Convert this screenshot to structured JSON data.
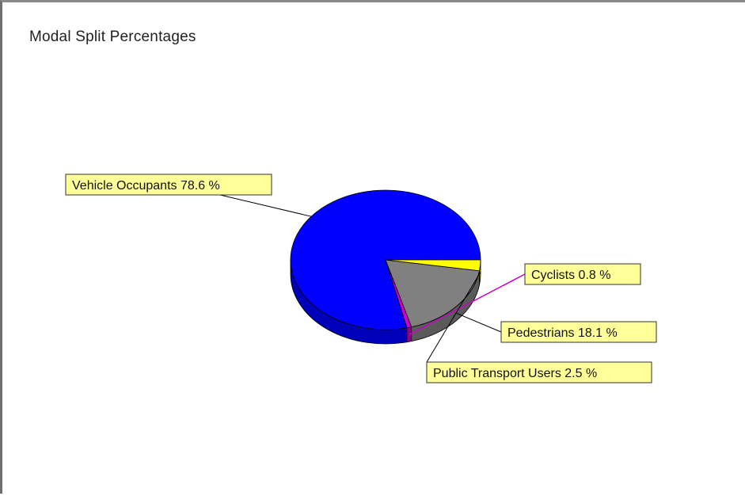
{
  "chart_data": {
    "type": "pie",
    "title": "Modal Split Percentages",
    "legend": "none",
    "slices": [
      {
        "label": "Vehicle Occupants",
        "value": 78.6,
        "display": "Vehicle Occupants 78.6 %",
        "color": "#0000ff",
        "side_color": "#0000b8"
      },
      {
        "label": "Cyclists",
        "value": 0.8,
        "display": "Cyclists 0.8 %",
        "color": "#cc00cc",
        "side_color": "#8a008a"
      },
      {
        "label": "Pedestrians",
        "value": 18.1,
        "display": "Pedestrians 18.1 %",
        "color": "#808080",
        "side_color": "#5a5a5a"
      },
      {
        "label": "Public Transport Users",
        "value": 2.5,
        "display": "Public Transport Users 2.5 %",
        "color": "#ffff00",
        "side_color": "#b8b800"
      }
    ],
    "label_background": "#ffff99"
  }
}
